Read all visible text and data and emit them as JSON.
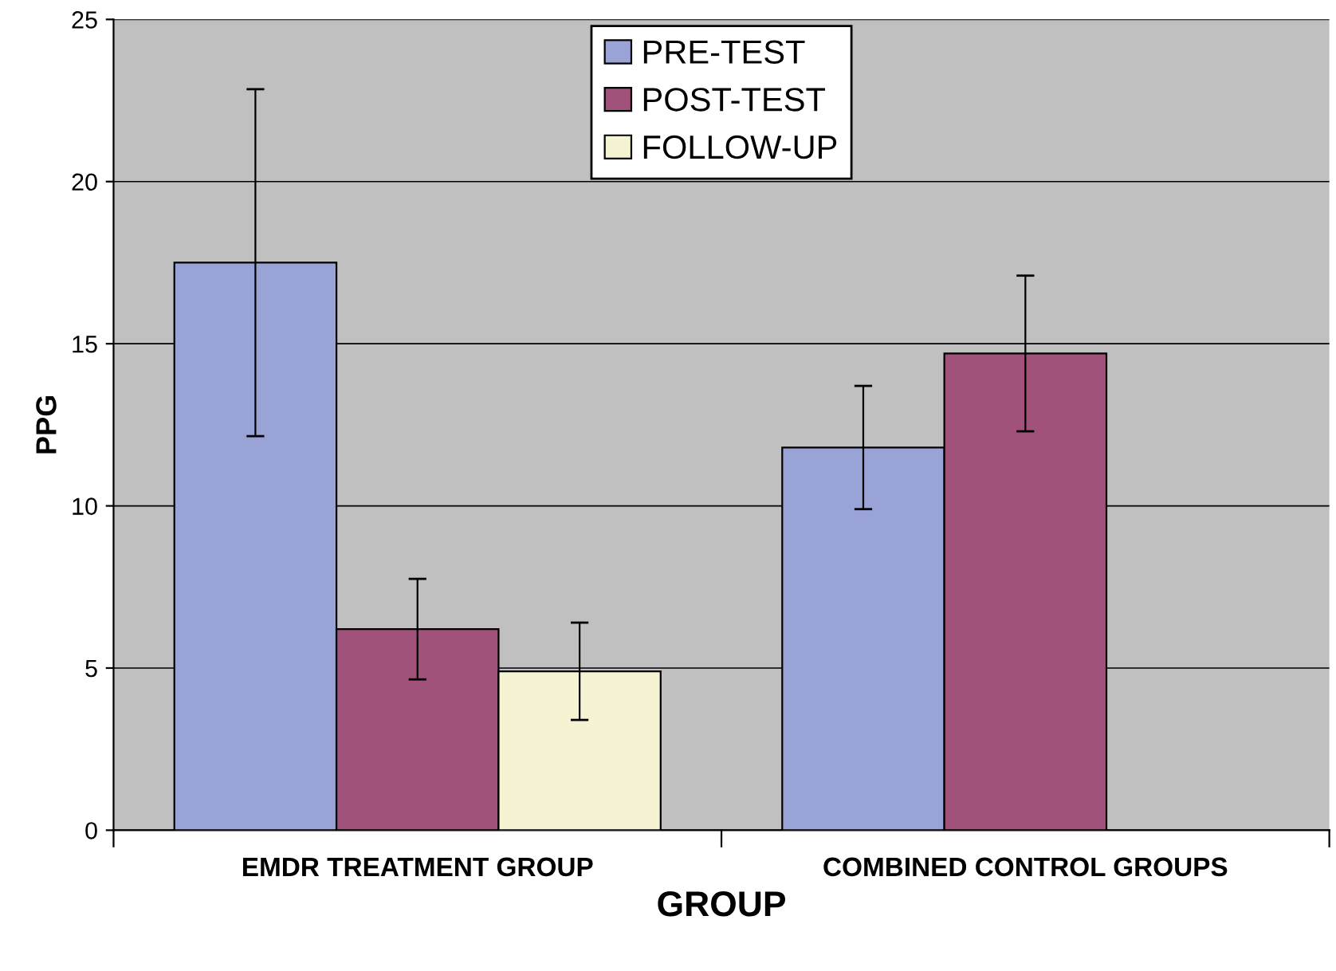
{
  "chart_data": {
    "type": "bar",
    "xlabel": "GROUP",
    "ylabel": "PPG",
    "categories": [
      "EMDR TREATMENT GROUP",
      "COMBINED CONTROL GROUPS"
    ],
    "series": [
      {
        "name": "PRE-TEST",
        "color": "#9aa3d6",
        "values": [
          17.5,
          11.8
        ],
        "errors": [
          5.35,
          1.9
        ]
      },
      {
        "name": "POST-TEST",
        "color": "#a0527a",
        "values": [
          6.2,
          14.7
        ],
        "errors": [
          1.55,
          2.4
        ]
      },
      {
        "name": "FOLLOW-UP",
        "color": "#f5f3d2",
        "values": [
          4.9,
          null
        ],
        "errors": [
          1.5,
          null
        ]
      }
    ],
    "ylim": [
      0,
      25
    ],
    "yticks": [
      0,
      5,
      10,
      15,
      20,
      25
    ],
    "grid": "y",
    "legend": "top"
  }
}
